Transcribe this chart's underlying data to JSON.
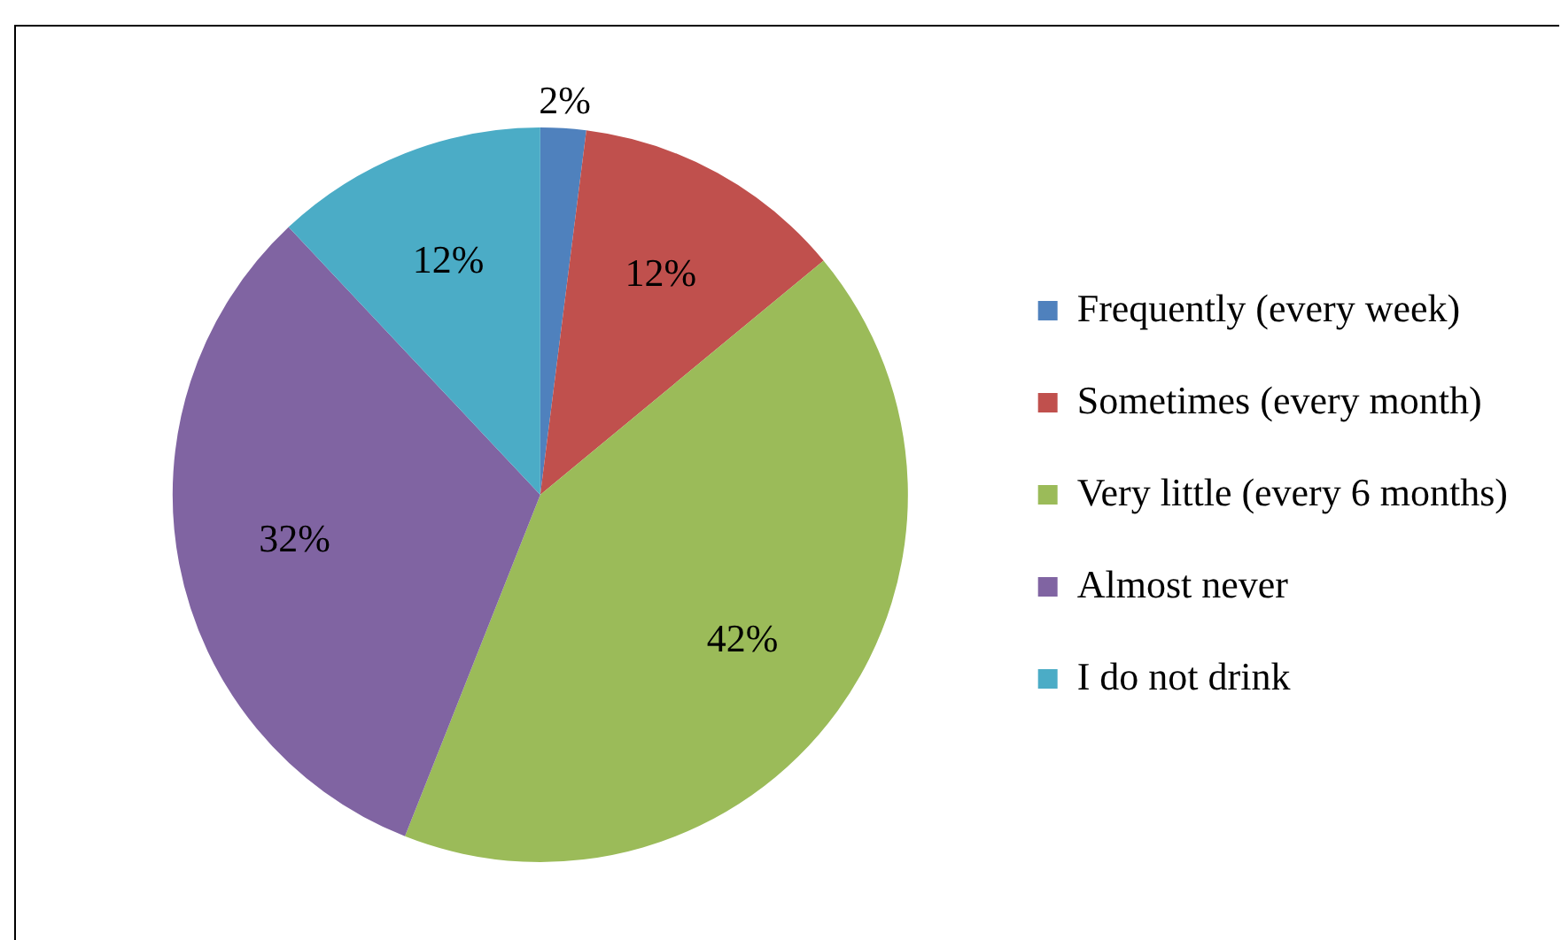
{
  "chart_data": {
    "type": "pie",
    "categories": [
      "Frequently (every week)",
      "Sometimes (every month)",
      "Very little (every 6 months)",
      "Almost never",
      "I do not drink"
    ],
    "values": [
      2,
      12,
      42,
      32,
      12
    ],
    "colors": [
      "#4f81bd",
      "#c0504d",
      "#9bbb59",
      "#8064a2",
      "#4bacc6"
    ],
    "value_labels": [
      "2%",
      "12%",
      "42%",
      "32%",
      "12%"
    ],
    "legend": "right"
  }
}
